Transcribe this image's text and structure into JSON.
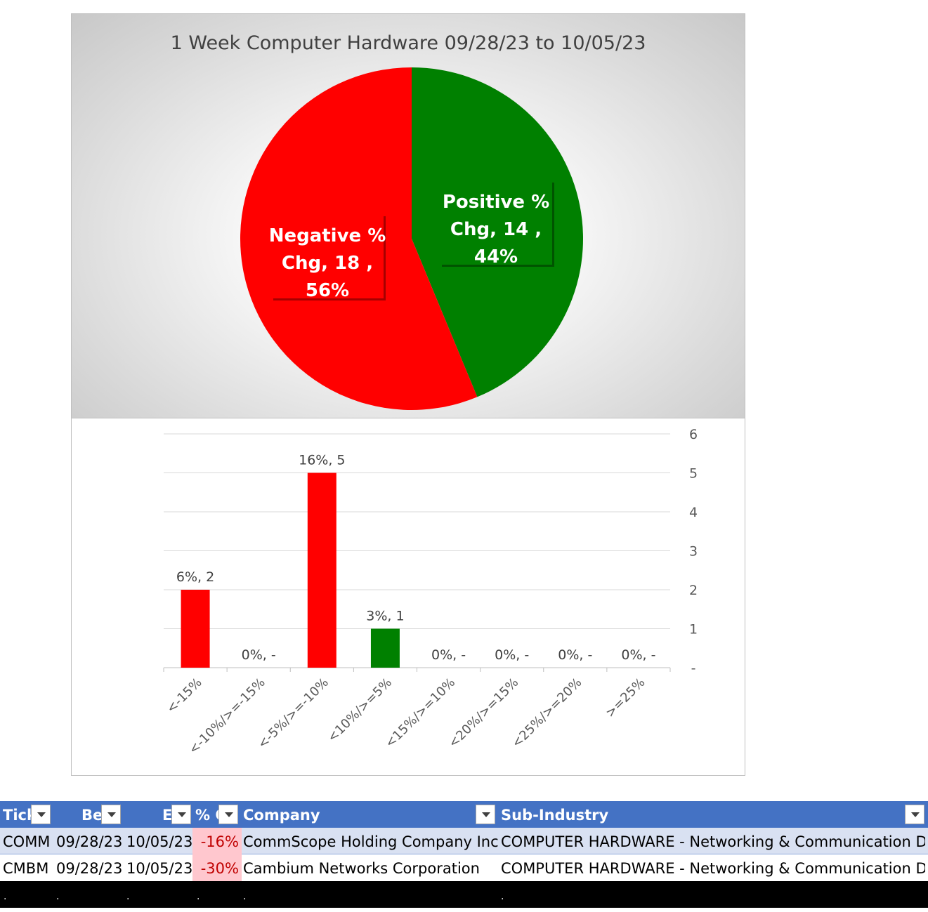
{
  "chart_data": [
    {
      "type": "pie",
      "title": "1 Week Computer Hardware 09/28/23 to 10/05/23",
      "slices": [
        {
          "name": "Positive % Chg",
          "value": 14,
          "percent": "44%",
          "color": "#008000",
          "label_lines": [
            "Positive %",
            "Chg,  14 ,",
            "44%"
          ]
        },
        {
          "name": "Negative % Chg",
          "value": 18,
          "percent": "56%",
          "color": "#ff0000",
          "label_lines": [
            "Negative %",
            "Chg,  18 ,",
            "56%"
          ]
        }
      ]
    },
    {
      "type": "bar",
      "categories": [
        "<-15%",
        "<-10%/>=-15%",
        "<-5%/>=-10%",
        "<10%/>=5%",
        "<15%/>=10%",
        "<20%/>=15%",
        "<25%/>=20%",
        ">=25%"
      ],
      "values": [
        2,
        0,
        5,
        1,
        0,
        0,
        0,
        0
      ],
      "data_labels": [
        "6%,  2",
        "0%,  -",
        "16%,  5",
        "3%,  1",
        "0%,  -",
        "0%,  -",
        "0%,  -",
        "0%,  -"
      ],
      "colors": [
        "#ff0000",
        "#ff0000",
        "#ff0000",
        "#008000",
        "#008000",
        "#008000",
        "#008000",
        "#008000"
      ],
      "y_ticks": [
        "-",
        "1",
        "2",
        "3",
        "4",
        "5",
        "6"
      ],
      "ylim": [
        0,
        6
      ],
      "y_axis_side": "right",
      "grid": true
    }
  ],
  "table": {
    "headers": [
      "Tick",
      "Be",
      "E",
      "% C",
      "Company",
      "Sub-Industry"
    ],
    "rows": [
      [
        "COMM",
        "09/28/23",
        "10/05/23",
        "-16%",
        "CommScope Holding Company Inc",
        "COMPUTER HARDWARE - Networking & Communication Dev"
      ],
      [
        "CMBM",
        "09/28/23",
        "10/05/23",
        "-30%",
        "Cambium Networks Corporation",
        "COMPUTER HARDWARE - Networking & Communication Dev"
      ]
    ],
    "footer_marks": [
      ".",
      ".",
      ".",
      ".",
      ".",
      "."
    ]
  }
}
